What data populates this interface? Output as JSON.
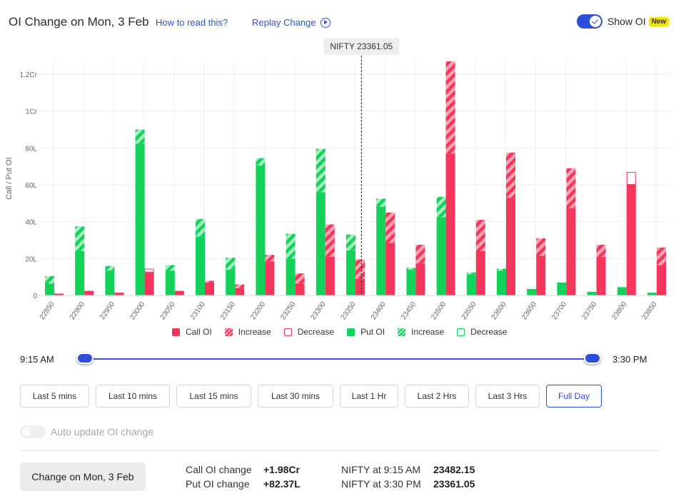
{
  "header": {
    "title": "OI Change on Mon, 3 Feb",
    "how_to_read": "How to read this?",
    "replay": "Replay Change",
    "show_oi": "Show OI",
    "new_badge": "New"
  },
  "spot_label": "NIFTY 23361.05",
  "legend": {
    "call_oi": "Call OI",
    "call_increase": "Increase",
    "call_decrease": "Decrease",
    "put_oi": "Put OI",
    "put_increase": "Increase",
    "put_decrease": "Decrease"
  },
  "colors": {
    "call": "#f5365c",
    "call_light": "#f9a3b3",
    "put": "#12d25a",
    "put_light": "#a3efc0",
    "accent": "#2f4ed8"
  },
  "slider": {
    "start": "9:15 AM",
    "end": "3:30 PM",
    "start_fraction": 0,
    "end_fraction": 1
  },
  "ranges": [
    {
      "label": "Last 5 mins",
      "active": false
    },
    {
      "label": "Last 10 mins",
      "active": false
    },
    {
      "label": "Last 15 mins",
      "active": false
    },
    {
      "label": "Last 30 mins",
      "active": false
    },
    {
      "label": "Last 1 Hr",
      "active": false
    },
    {
      "label": "Last 2 Hrs",
      "active": false
    },
    {
      "label": "Last 3 Hrs",
      "active": false
    },
    {
      "label": "Full Day",
      "active": true
    }
  ],
  "auto_update": "Auto update OI change",
  "summary": {
    "change_button": "Change on Mon, 3 Feb",
    "call_oi_label": "Call OI change",
    "call_oi_value": "+1.98Cr",
    "put_oi_label": "Put OI change",
    "put_oi_value": "+82.37L",
    "spot_open_label": "NIFTY at 9:15 AM",
    "spot_open_value": "23482.15",
    "spot_close_label": "NIFTY at 3:30 PM",
    "spot_close_value": "23361.05"
  },
  "chart_data": {
    "type": "bar",
    "ylabel": "Call / Put OI",
    "unit_note": "values in lakh",
    "ylim": [
      0,
      120
    ],
    "yticks": [
      {
        "value": 0,
        "label": "0"
      },
      {
        "value": 20,
        "label": "20L"
      },
      {
        "value": 40,
        "label": "40L"
      },
      {
        "value": 60,
        "label": "60L"
      },
      {
        "value": 80,
        "label": "80L"
      },
      {
        "value": 100,
        "label": "1Cr"
      },
      {
        "value": 120,
        "label": "1.2Cr"
      }
    ],
    "spot_value": 23361.05,
    "categories": [
      "22850",
      "22900",
      "22950",
      "23000",
      "23050",
      "23100",
      "23150",
      "23200",
      "23250",
      "23300",
      "23350",
      "23400",
      "23450",
      "23500",
      "23550",
      "23600",
      "23650",
      "23700",
      "23750",
      "23800",
      "23850"
    ],
    "series": [
      {
        "name": "Put OI",
        "start": [
          6.5,
          24,
          13.5,
          82.5,
          13.5,
          32,
          14,
          70.5,
          20,
          56,
          24.5,
          48,
          14,
          42.5,
          11.5,
          13.5,
          3.5,
          7,
          2,
          4.5,
          1.5
        ],
        "end": [
          10.5,
          37.5,
          16,
          90,
          16.5,
          41.5,
          20.5,
          74.5,
          33.5,
          79.5,
          33,
          52.5,
          15,
          53.5,
          12.5,
          14.5,
          3.5,
          7,
          2,
          4.5,
          1.5
        ]
      },
      {
        "name": "Call OI",
        "start": [
          1,
          2.5,
          1.5,
          14.5,
          2.5,
          7,
          4,
          18.5,
          6.5,
          21,
          9,
          28.5,
          17.5,
          77,
          24,
          53,
          21.5,
          47.5,
          21,
          67,
          16.5
        ],
        "end": [
          1,
          2.5,
          1.5,
          12.5,
          2.5,
          8,
          6,
          22,
          12,
          38.5,
          19.5,
          45,
          27.5,
          127,
          41,
          77.5,
          31,
          69,
          27.5,
          60,
          26
        ]
      }
    ]
  }
}
